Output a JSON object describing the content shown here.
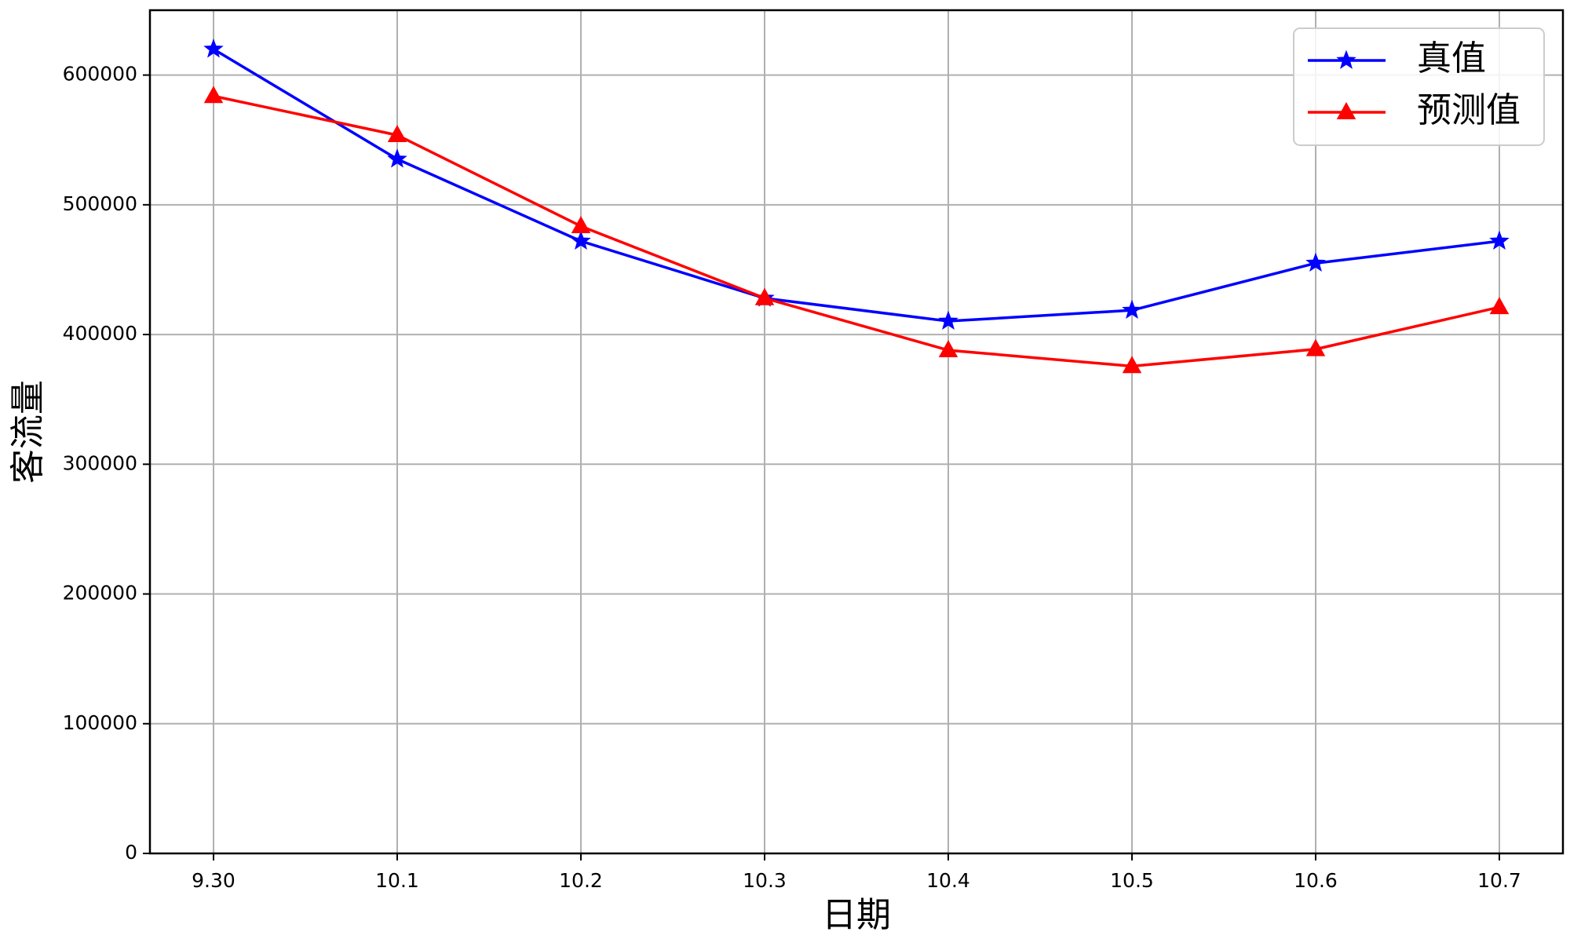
{
  "chart_data": {
    "type": "line",
    "x_label": "日期",
    "y_label": "客流量",
    "categories": [
      "9.30",
      "10.1",
      "10.2",
      "10.3",
      "10.4",
      "10.5",
      "10.6",
      "10.7"
    ],
    "series": [
      {
        "name": "真值",
        "color": "#0000ff",
        "marker": "star",
        "values": [
          620000,
          535200,
          472000,
          428000,
          410300,
          418700,
          455000,
          472000
        ]
      },
      {
        "name": "预测值",
        "color": "#ff0000",
        "marker": "triangle",
        "values": [
          583800,
          553700,
          483500,
          428000,
          387900,
          375600,
          388700,
          421100
        ]
      }
    ],
    "ylim": [
      0,
      650000
    ],
    "yticks": [
      0,
      100000,
      200000,
      300000,
      400000,
      500000,
      600000
    ],
    "grid": true,
    "legend": "upper right"
  }
}
